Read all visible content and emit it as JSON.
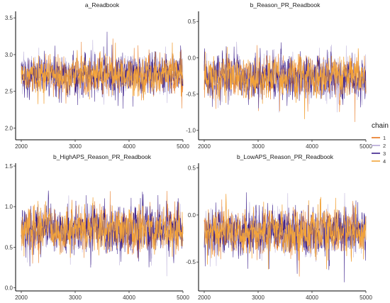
{
  "chart_data": [
    {
      "type": "line",
      "title": "a_Readbook",
      "xlabel": "",
      "ylabel": "",
      "xlim": [
        2000,
        5000
      ],
      "ylim": [
        1.85,
        3.55
      ],
      "x_ticks": [
        2000,
        3000,
        4000,
        5000
      ],
      "y_ticks": [
        2.0,
        2.5,
        3.0,
        3.5
      ],
      "y_tick_labels": [
        "2.0",
        "2.5",
        "3.0",
        "3.5"
      ],
      "center": 2.72,
      "spread": 0.15,
      "x": [
        2000,
        5000
      ],
      "series": [
        {
          "name": "1",
          "values": [
            2.72,
            2.72
          ]
        },
        {
          "name": "2",
          "values": [
            2.72,
            2.72
          ]
        },
        {
          "name": "3",
          "values": [
            2.72,
            2.72
          ]
        },
        {
          "name": "4",
          "values": [
            2.72,
            2.72
          ]
        }
      ],
      "grid": false
    },
    {
      "type": "line",
      "title": "b_Reason_PR_Readbook",
      "xlabel": "",
      "ylabel": "",
      "xlim": [
        2000,
        5000
      ],
      "ylim": [
        -1.12,
        0.6
      ],
      "x_ticks": [
        2000,
        3000,
        4000,
        5000
      ],
      "y_ticks": [
        -1.0,
        -0.5,
        0.0,
        0.5
      ],
      "y_tick_labels": [
        "-1.0",
        "-0.5",
        "0.0",
        "0.5"
      ],
      "center": -0.27,
      "spread": 0.17,
      "x": [
        2000,
        5000
      ],
      "series": [
        {
          "name": "1",
          "values": [
            -0.27,
            -0.27
          ]
        },
        {
          "name": "2",
          "values": [
            -0.27,
            -0.27
          ]
        },
        {
          "name": "3",
          "values": [
            -0.27,
            -0.27
          ]
        },
        {
          "name": "4",
          "values": [
            -0.27,
            -0.27
          ]
        }
      ],
      "grid": false
    },
    {
      "type": "line",
      "title": "b_HighAPS_Reason_PR_Readbook",
      "xlabel": "",
      "ylabel": "",
      "xlim": [
        2000,
        5000
      ],
      "ylim": [
        -0.03,
        1.5
      ],
      "x_ticks": [
        2000,
        3000,
        4000,
        5000
      ],
      "y_ticks": [
        0.0,
        0.5,
        1.0,
        1.5
      ],
      "y_tick_labels": [
        "0.0",
        "0.5",
        "1.0",
        "1.5"
      ],
      "center": 0.72,
      "spread": 0.16,
      "x": [
        2000,
        5000
      ],
      "series": [
        {
          "name": "1",
          "values": [
            0.72,
            0.72
          ]
        },
        {
          "name": "2",
          "values": [
            0.72,
            0.72
          ]
        },
        {
          "name": "3",
          "values": [
            0.72,
            0.72
          ]
        },
        {
          "name": "4",
          "values": [
            0.72,
            0.72
          ]
        }
      ],
      "grid": false
    },
    {
      "type": "line",
      "title": "b_LowAPS_Reason_PR_Readbook",
      "xlabel": "",
      "ylabel": "",
      "xlim": [
        2000,
        5000
      ],
      "ylim": [
        -0.8,
        0.52
      ],
      "x_ticks": [
        2000,
        3000,
        4000,
        5000
      ],
      "y_ticks": [
        -0.5,
        0.0,
        0.5
      ],
      "y_tick_labels": [
        "-0.5",
        "0.0",
        "0.5"
      ],
      "center": -0.18,
      "spread": 0.14,
      "x": [
        2000,
        5000
      ],
      "series": [
        {
          "name": "1",
          "values": [
            -0.18,
            -0.18
          ]
        },
        {
          "name": "2",
          "values": [
            -0.18,
            -0.18
          ]
        },
        {
          "name": "3",
          "values": [
            -0.18,
            -0.18
          ]
        },
        {
          "name": "4",
          "values": [
            -0.18,
            -0.18
          ]
        }
      ],
      "grid": false
    }
  ],
  "legend": {
    "title": "chain",
    "placement": "right",
    "entries": [
      {
        "label": "1",
        "color": "#e8751a"
      },
      {
        "label": "2",
        "color": "#b4a7d6"
      },
      {
        "label": "3",
        "color": "#3a1e8a"
      },
      {
        "label": "4",
        "color": "#f2a33a"
      }
    ]
  },
  "series_colors": [
    "#e8751a",
    "#b4a7d6",
    "#3a1e8a",
    "#f2a33a"
  ]
}
